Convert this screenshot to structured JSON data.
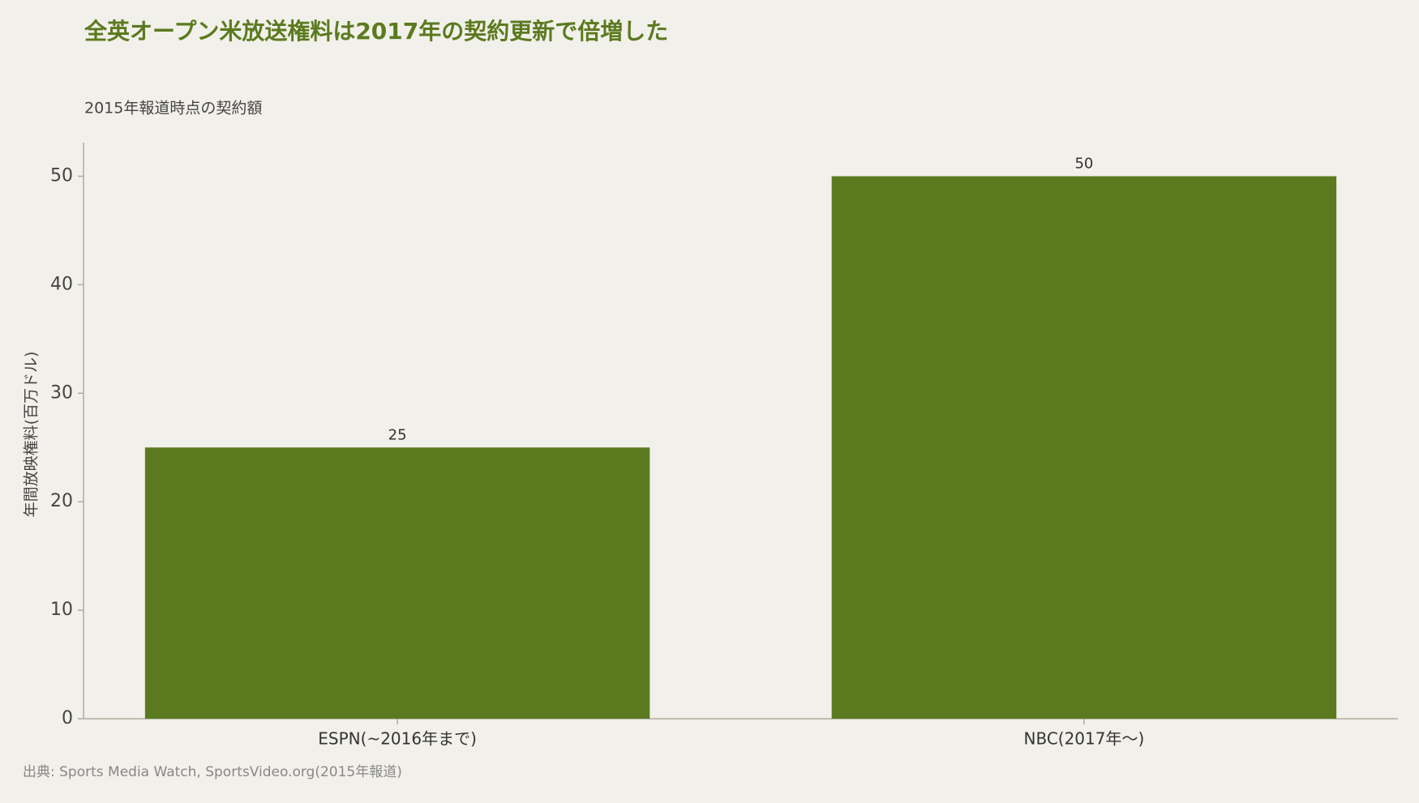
{
  "chart_data": {
    "type": "bar",
    "title": "全英オープン米放送権料は2017年の契約更新で倍増した",
    "subtitle": "2015年報道時点の契約額",
    "y_label": "年間放映権料(百万ドル)",
    "categories": [
      "ESPN(~2016年まで)",
      "NBC(2017年〜)"
    ],
    "values": [
      25,
      50
    ],
    "color": "#5b7a1f",
    "ylim": [
      0,
      53.1
    ],
    "yticks": [
      0,
      10,
      20,
      30,
      40,
      50
    ],
    "grid": false,
    "source": "出典: Sports Media Watch, SportsVideo.org(2015年報道)"
  }
}
